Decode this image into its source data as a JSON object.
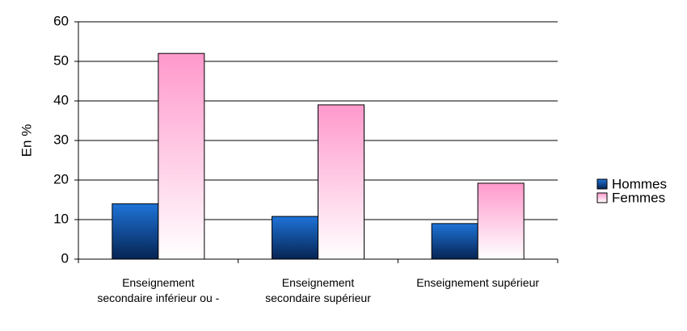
{
  "chart_data": {
    "type": "bar",
    "y_label": "En %",
    "categories": [
      "Enseignement secondaire inférieur ou -",
      "Enseignement secondaire supérieur",
      "Enseignement supérieur"
    ],
    "series": [
      {
        "name": "Hommes",
        "color": "#1e73d8",
        "values": [
          14,
          10.8,
          9
        ]
      },
      {
        "name": "Femmes",
        "color": "#ff99cc",
        "values": [
          52,
          39,
          19.2
        ]
      }
    ],
    "ylim": [
      0,
      60
    ],
    "yticks": [
      0,
      10,
      20,
      30,
      40,
      50,
      60
    ],
    "grid": true,
    "legend": "right"
  }
}
